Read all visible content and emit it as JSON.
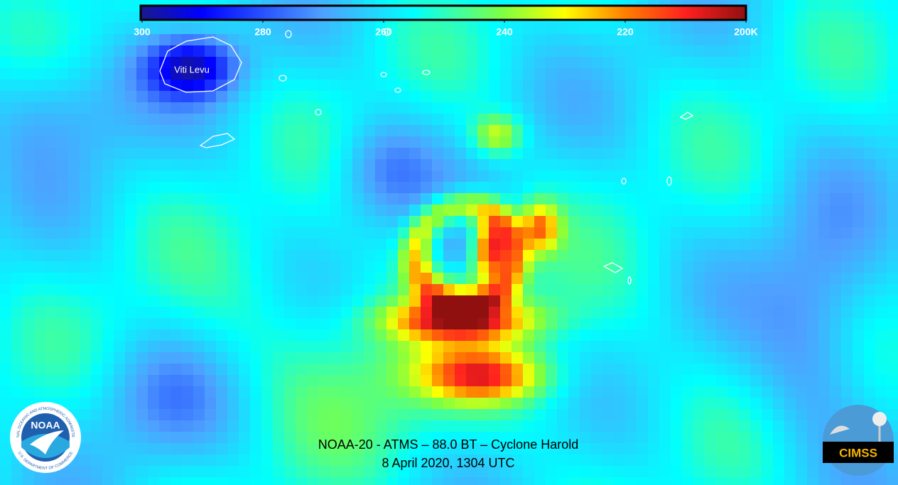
{
  "colorbar": {
    "lim": [
      300,
      200
    ],
    "ticks": [
      300,
      280,
      260,
      240,
      220,
      {
        "value": 200,
        "label": "200K"
      }
    ]
  },
  "map": {
    "island_label": "Viti Levu"
  },
  "caption": {
    "line1": "NOAA-20 - ATMS – 88.0 BT – Cyclone Harold",
    "line2": "8 April 2020, 1304 UTC"
  },
  "logos": {
    "noaa": "NOAA",
    "noaa_ring_top": "NATIONAL OCEANIC AND ATMOSPHERIC ADMINISTRATION",
    "noaa_ring_bottom": "U.S. DEPARTMENT OF COMMERCE",
    "cimss": "CIMSS"
  }
}
